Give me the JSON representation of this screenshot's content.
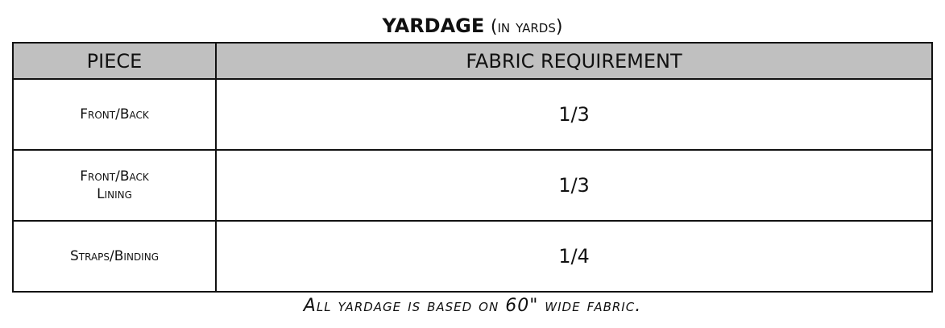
{
  "title": {
    "main": "YARDAGE",
    "sub": "(in yards)"
  },
  "headers": [
    "PIECE",
    "FABRIC REQUIREMENT"
  ],
  "rows": [
    {
      "piece": "Front/Back",
      "piece2": "",
      "req": "1/3"
    },
    {
      "piece": "Front/Back",
      "piece2": "Lining",
      "req": "1/3"
    },
    {
      "piece": "Straps/Binding",
      "piece2": "",
      "req": "1/4"
    }
  ],
  "footnote": "All yardage is based on 60\" wide fabric.",
  "colors": {
    "header_bg": "#c0c0c0"
  }
}
